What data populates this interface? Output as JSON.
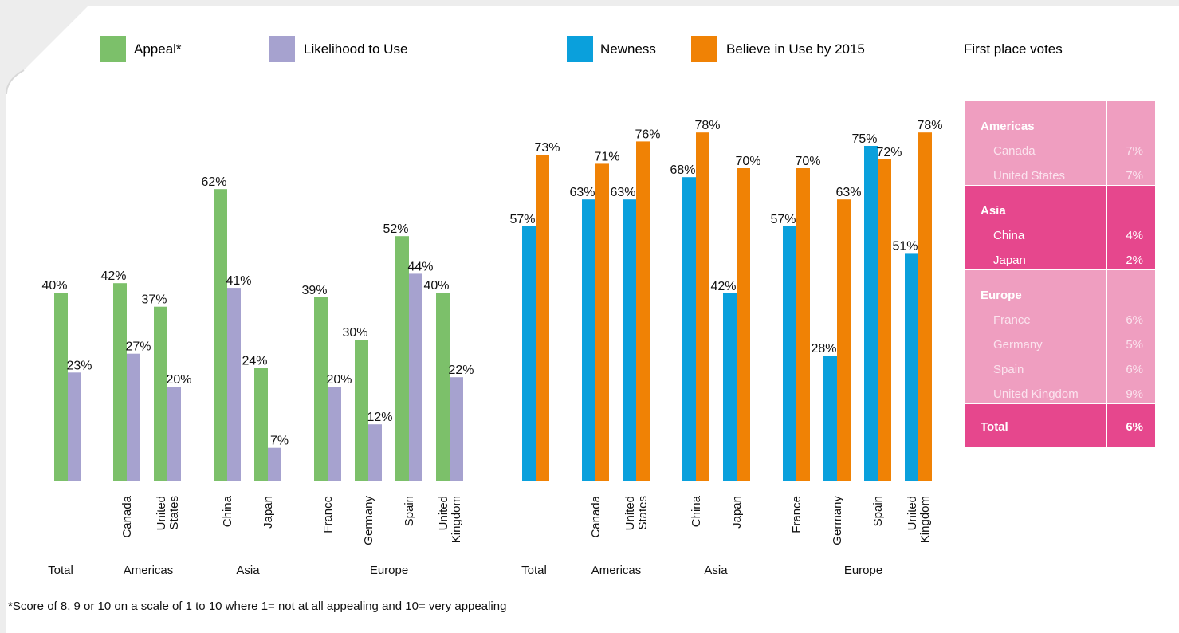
{
  "legend": [
    {
      "label": "Appeal*",
      "color": "#7cc06a"
    },
    {
      "label": "Likelihood to Use",
      "color": "#a6a2cf"
    },
    {
      "label": "Newness",
      "color": "#0aa0dc"
    },
    {
      "label": "Believe in Use by 2015",
      "color": "#f08205"
    }
  ],
  "first_place_title": "First place votes",
  "footnote": "*Score of 8, 9 or 10 on a scale of 1 to 10 where 1= not at all appealing and 10= very appealing",
  "chart_data": [
    {
      "type": "bar",
      "categories": [
        "Total",
        "Canada",
        "United States",
        "China",
        "Japan",
        "France",
        "Germany",
        "Spain",
        "United Kingdom"
      ],
      "groups": [
        "Total",
        "Americas",
        "Americas",
        "Asia",
        "Asia",
        "Europe",
        "Europe",
        "Europe",
        "Europe"
      ],
      "group_labels": [
        "Total",
        "Americas",
        "Asia",
        "Europe"
      ],
      "series": [
        {
          "name": "Appeal*",
          "values": [
            40,
            42,
            37,
            62,
            24,
            39,
            30,
            52,
            40
          ]
        },
        {
          "name": "Likelihood to Use",
          "values": [
            23,
            27,
            20,
            41,
            7,
            20,
            12,
            44,
            22
          ]
        }
      ],
      "colors": [
        "#7cc06a",
        "#a6a2cf"
      ],
      "value_suffix": "%",
      "ylim": [
        0,
        80
      ]
    },
    {
      "type": "bar",
      "categories": [
        "Total",
        "Canada",
        "United States",
        "China",
        "Japan",
        "France",
        "Germany",
        "Spain",
        "United Kingdom"
      ],
      "groups": [
        "Total",
        "Americas",
        "Americas",
        "Asia",
        "Asia",
        "Europe",
        "Europe",
        "Europe",
        "Europe"
      ],
      "group_labels": [
        "Total",
        "Americas",
        "Asia",
        "Europe"
      ],
      "series": [
        {
          "name": "Newness",
          "values": [
            57,
            63,
            63,
            68,
            42,
            57,
            28,
            75,
            51
          ]
        },
        {
          "name": "Believe in Use by 2015",
          "values": [
            73,
            71,
            76,
            78,
            70,
            70,
            63,
            72,
            78
          ]
        }
      ],
      "colors": [
        "#0aa0dc",
        "#f08205"
      ],
      "value_suffix": "%",
      "ylim": [
        0,
        80
      ]
    }
  ],
  "first_place_table": {
    "sections": [
      {
        "region": "Americas",
        "rows": [
          {
            "country": "Canada",
            "value": "7%"
          },
          {
            "country": "United States",
            "value": "7%"
          }
        ]
      },
      {
        "region": "Asia",
        "rows": [
          {
            "country": "China",
            "value": "4%"
          },
          {
            "country": "Japan",
            "value": "2%"
          }
        ]
      },
      {
        "region": "Europe",
        "rows": [
          {
            "country": "France",
            "value": "6%"
          },
          {
            "country": "Germany",
            "value": "5%"
          },
          {
            "country": "Spain",
            "value": "6%"
          },
          {
            "country": "United Kingdom",
            "value": "9%"
          }
        ]
      }
    ],
    "total_label": "Total",
    "total_value": "6%",
    "colors": {
      "light": "#ef9ec0",
      "dark": "#e6478d",
      "text_light": "#fbe3ee"
    }
  }
}
